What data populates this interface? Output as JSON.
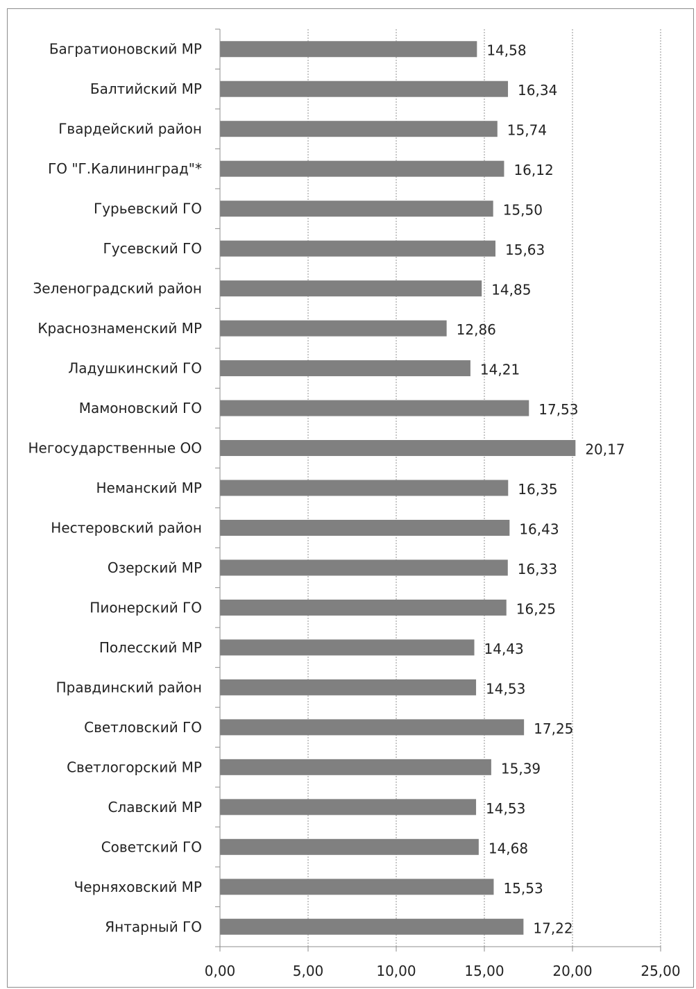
{
  "chart_data": {
    "type": "bar",
    "orientation": "horizontal",
    "categories": [
      "Багратионовский МР",
      "Балтийский МР",
      "Гвардейский район",
      "ГО \"Г.Калининград\"*",
      "Гурьевский ГО",
      "Гусевский ГО",
      "Зеленоградский район",
      "Краснознаменский МР",
      "Ладушкинский ГО",
      "Мамоновский ГО",
      "Негосударственные ОО",
      "Неманский МР",
      "Нестеровский район",
      "Озерский МР",
      "Пионерский ГО",
      "Полесский МР",
      "Правдинский район",
      "Светловский ГО",
      "Светлогорский МР",
      "Славский МР",
      "Советский ГО",
      "Черняховский МР",
      "Янтарный ГО"
    ],
    "values": [
      14.58,
      16.34,
      15.74,
      16.12,
      15.5,
      15.63,
      14.85,
      12.86,
      14.21,
      17.53,
      20.17,
      16.35,
      16.43,
      16.33,
      16.25,
      14.43,
      14.53,
      17.25,
      15.39,
      14.53,
      14.68,
      15.53,
      17.22
    ],
    "value_labels": [
      "14,58",
      "16,34",
      "15,74",
      "16,12",
      "15,50",
      "15,63",
      "14,85",
      "12,86",
      "14,21",
      "17,53",
      "20,17",
      "16,35",
      "16,43",
      "16,33",
      "16,25",
      "14,43",
      "14,53",
      "17,25",
      "15,39",
      "14,53",
      "14,68",
      "15,53",
      "17,22"
    ],
    "x_ticks": [
      "0,00",
      "5,00",
      "10,00",
      "15,00",
      "20,00",
      "25,00"
    ],
    "xlim": [
      0,
      25
    ],
    "x_tick_step": 5,
    "title": "",
    "xlabel": "",
    "ylabel": "",
    "grid": "vertical dotted",
    "legend": "none",
    "bar_color": "#808080",
    "gridline_color": "#909090",
    "axis_color": "#8c8c8c"
  }
}
